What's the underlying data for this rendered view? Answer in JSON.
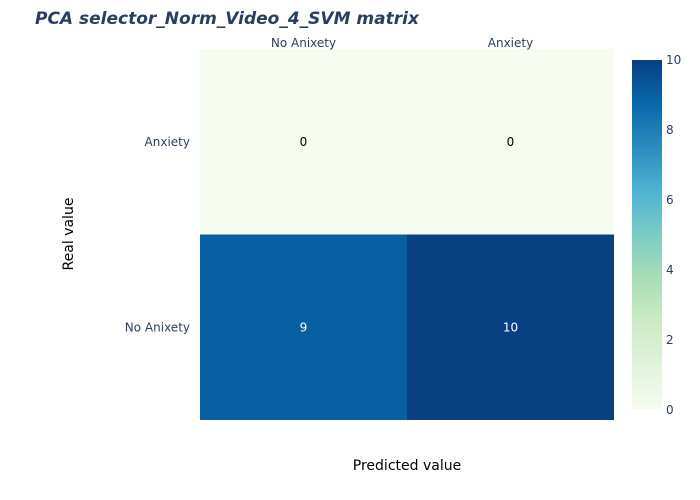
{
  "chart_data": {
    "type": "heatmap",
    "title": "PCA selector_Norm_Video_4_SVM matrix",
    "xlabel": "Predicted value",
    "ylabel": "Real value",
    "x_categories": [
      "No Anixety",
      "Anxiety"
    ],
    "y_categories": [
      "Anxiety",
      "No Anixety"
    ],
    "z": [
      [
        0,
        0
      ],
      [
        9,
        10
      ]
    ],
    "zlim": [
      0,
      10
    ],
    "colorbar_ticks": [
      "0",
      "2",
      "4",
      "6",
      "8",
      "10"
    ],
    "colorscale": "GnBu",
    "colors": {
      "low": "#f7fcf0",
      "high": "#084081"
    }
  }
}
